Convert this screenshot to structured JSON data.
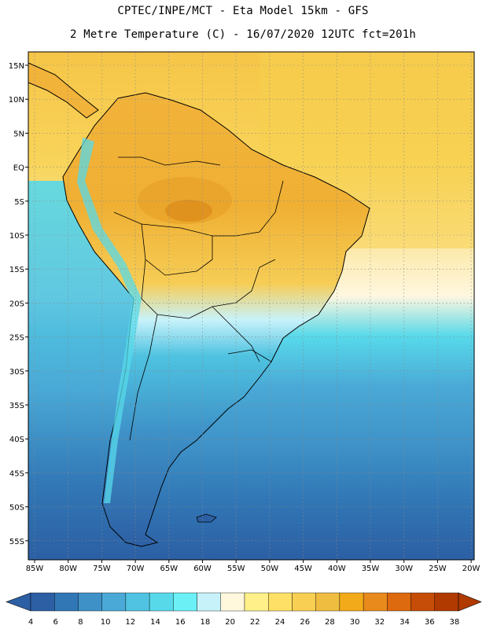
{
  "header": {
    "line1": "CPTEC/INPE/MCT -  Eta Model 15km - GFS",
    "line2": "2 Metre Temperature (C) - 16/07/2020 12UTC fct=201h"
  },
  "map": {
    "lat_labels": [
      "15N",
      "10N",
      "5N",
      "EQ",
      "5S",
      "10S",
      "15S",
      "20S",
      "25S",
      "30S",
      "35S",
      "40S",
      "45S",
      "50S",
      "55S"
    ],
    "lon_labels": [
      "85W",
      "80W",
      "75W",
      "70W",
      "65W",
      "60W",
      "55W",
      "50W",
      "45W",
      "40W",
      "35W",
      "30W",
      "25W",
      "20W"
    ]
  },
  "colorbar": {
    "values": [
      "4",
      "6",
      "8",
      "10",
      "12",
      "14",
      "16",
      "18",
      "20",
      "22",
      "24",
      "26",
      "28",
      "30",
      "32",
      "34",
      "36",
      "38"
    ],
    "colors": [
      "#2c5fa4",
      "#3177b6",
      "#3e91c7",
      "#4aa9d6",
      "#4fc3e1",
      "#57d9ea",
      "#6af0f5",
      "#c8f2fa",
      "#fff8dc",
      "#fff08a",
      "#ffe066",
      "#f8cf52",
      "#efbd3f",
      "#f2aa1a",
      "#e88a1c",
      "#dd6a0e",
      "#c64d08",
      "#b03a00"
    ]
  }
}
